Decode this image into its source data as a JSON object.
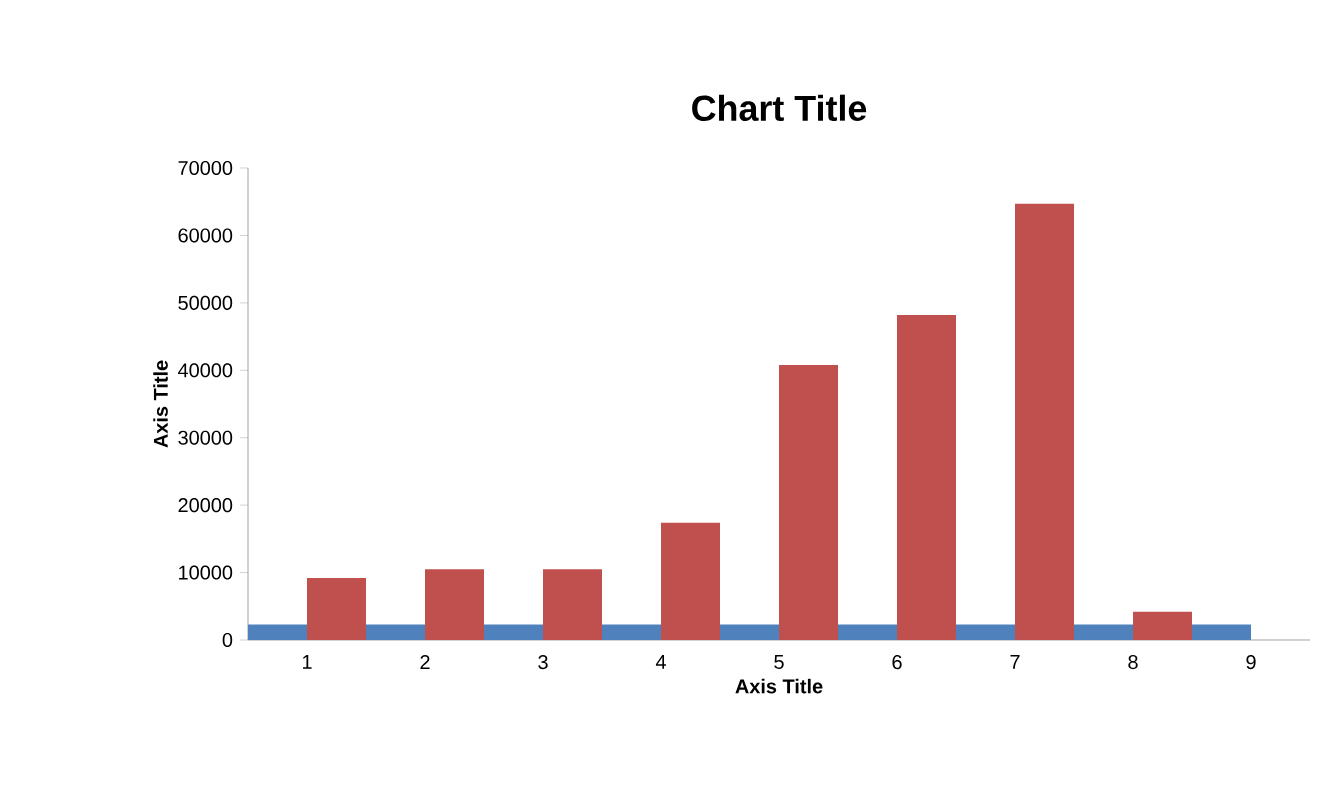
{
  "chart_data": {
    "type": "bar",
    "title": "Chart Title",
    "xlabel": "Axis Title",
    "ylabel": "Axis Title",
    "categories": [
      "1",
      "2",
      "3",
      "4",
      "5",
      "6",
      "7",
      "8",
      "9"
    ],
    "series": [
      {
        "color": "#4f81bd",
        "values": [
          2300,
          2300,
          2300,
          2300,
          2300,
          2300,
          2300,
          2300,
          2300
        ]
      },
      {
        "color": "#c0504d",
        "values": [
          9200,
          10500,
          10500,
          17400,
          40800,
          48200,
          64700,
          4200,
          0
        ]
      }
    ],
    "ylim": [
      0,
      70000
    ],
    "yticks": [
      0,
      10000,
      20000,
      30000,
      40000,
      50000,
      60000,
      70000
    ],
    "grid": false,
    "legend": false
  }
}
